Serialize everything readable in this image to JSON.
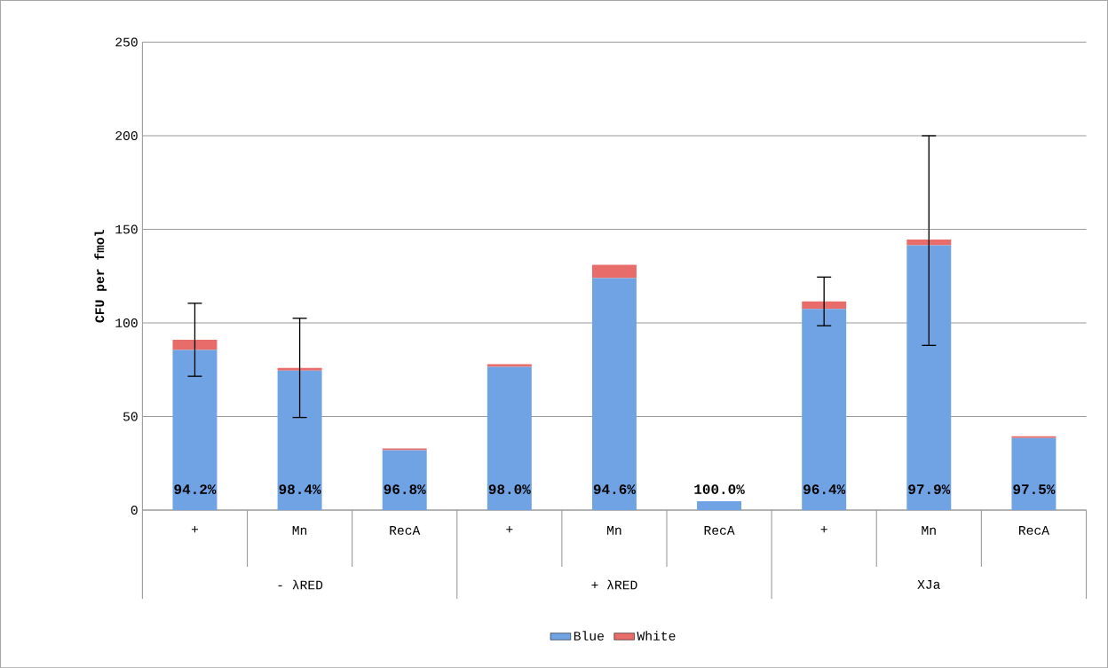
{
  "chart_data": {
    "type": "bar",
    "stacked": true,
    "ylabel": "CFU per fmol",
    "categories": [
      "+",
      "Mn",
      "RecA",
      "+",
      "Mn",
      "RecA",
      "+",
      "Mn",
      "RecA"
    ],
    "annotations": [
      "- λRED",
      "+ λRED",
      "XJa",
      "94.2%",
      "98.4%",
      "96.8%",
      "98.0%",
      "94.6%",
      "100.0%",
      "96.4%",
      "97.9%",
      "97.5%"
    ],
    "series": [
      {
        "name": "Blue",
        "color": "#6fa3e3",
        "values": [
          85.5,
          74.5,
          32,
          76.5,
          124,
          4.7,
          107.5,
          141.5,
          38.5
        ]
      },
      {
        "name": "White",
        "color": "#e86c6a",
        "values": [
          5.5,
          1.5,
          1,
          1.5,
          7,
          0,
          4,
          3,
          1
        ],
        "errors": [
          [
            71.5,
            110.5
          ],
          [
            49.5,
            102.5
          ],
          null,
          null,
          null,
          null,
          [
            98.5,
            124.5
          ],
          [
            88,
            200
          ],
          null
        ]
      }
    ],
    "ylim": [
      0,
      250
    ],
    "yticks": [
      0,
      50,
      100,
      150,
      200,
      250
    ],
    "grid": "y",
    "legend": "bottom"
  }
}
